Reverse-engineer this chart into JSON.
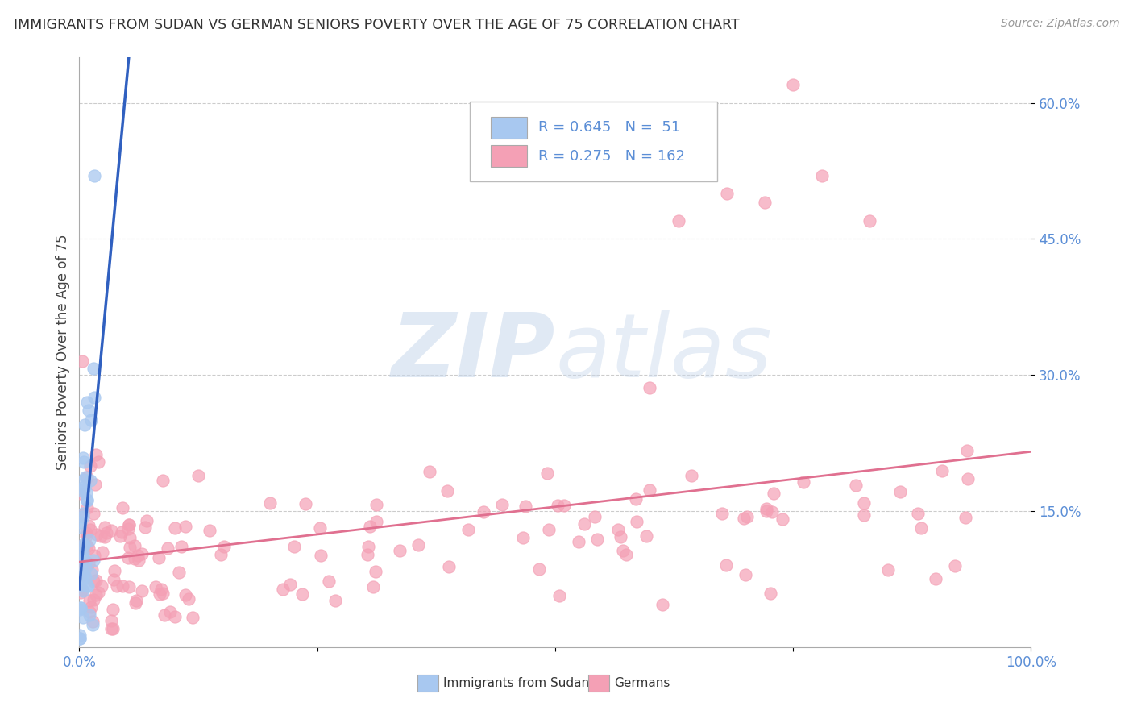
{
  "title": "IMMIGRANTS FROM SUDAN VS GERMAN SENIORS POVERTY OVER THE AGE OF 75 CORRELATION CHART",
  "source": "Source: ZipAtlas.com",
  "ylabel": "Seniors Poverty Over the Age of 75",
  "watermark_zip": "ZIP",
  "watermark_atlas": "atlas",
  "blue_R": 0.645,
  "blue_N": 51,
  "pink_R": 0.275,
  "pink_N": 162,
  "blue_color": "#A8C8F0",
  "pink_color": "#F4A0B5",
  "blue_line_color": "#3060C0",
  "pink_line_color": "#E07090",
  "background_color": "#FFFFFF",
  "grid_color": "#CCCCCC",
  "xlim": [
    0.0,
    1.0
  ],
  "ylim": [
    0.0,
    0.65
  ],
  "right_yticks": [
    0.15,
    0.3,
    0.45,
    0.6
  ],
  "right_yticklabels": [
    "15.0%",
    "30.0%",
    "45.0%",
    "60.0%"
  ],
  "tick_color": "#5B8ED6",
  "blue_seed": 77,
  "pink_seed": 55
}
